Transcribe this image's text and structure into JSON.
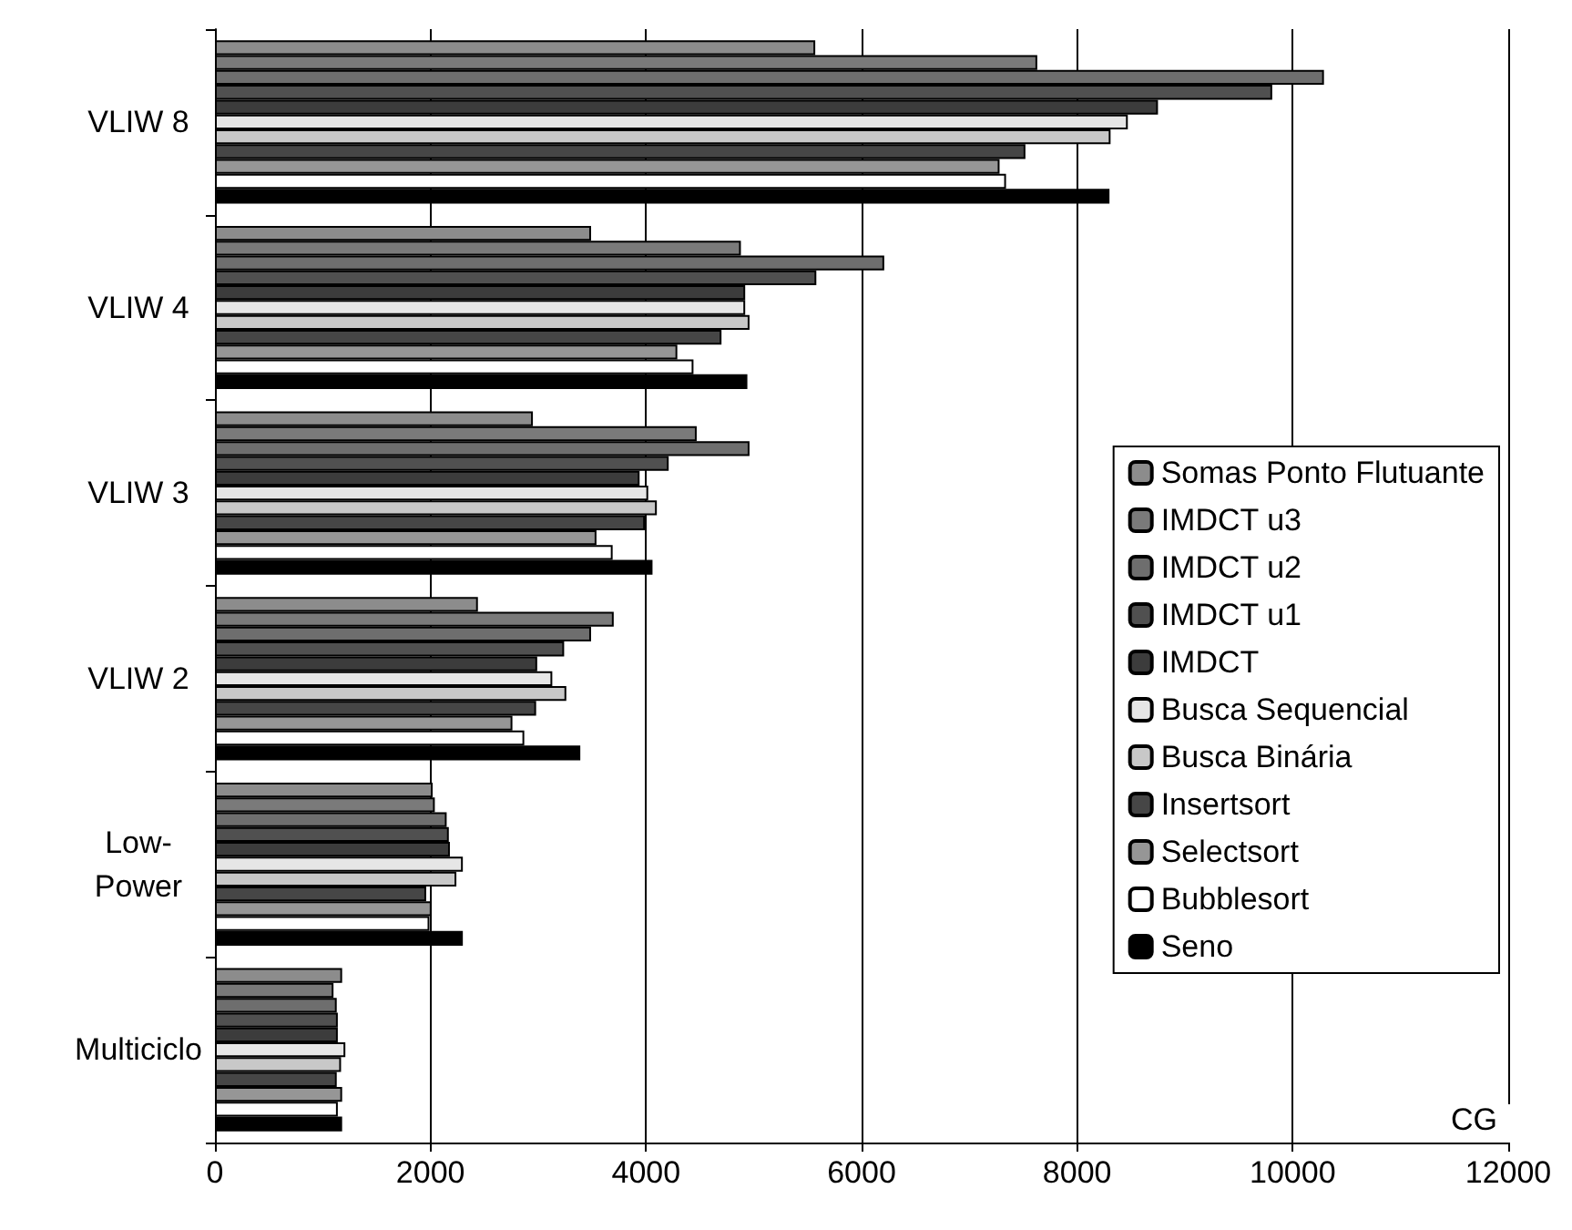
{
  "chart_data": {
    "type": "bar",
    "orientation": "horizontal",
    "categories": [
      "VLIW 8",
      "VLIW 4",
      "VLIW 3",
      "VLIW 2",
      "Low-\nPower",
      "Multiciclo"
    ],
    "xlabel": "CG",
    "xlim": [
      0,
      12000
    ],
    "xticks": [
      0,
      2000,
      4000,
      6000,
      8000,
      10000,
      12000
    ],
    "grid": "x",
    "legend": "right",
    "series": [
      {
        "name": "Somas Ponto Flutuante",
        "color": "#8c8c8c",
        "values": [
          5570,
          3490,
          2950,
          2440,
          2020,
          1180
        ]
      },
      {
        "name": "IMDCT u3",
        "color": "#7a7a7a",
        "values": [
          7630,
          4880,
          4470,
          3700,
          2040,
          1100
        ]
      },
      {
        "name": "IMDCT u2",
        "color": "#6e6e6e",
        "values": [
          10290,
          6210,
          4960,
          3490,
          2150,
          1130
        ]
      },
      {
        "name": "IMDCT u1",
        "color": "#505050",
        "values": [
          9810,
          5580,
          4210,
          3240,
          2170,
          1140
        ]
      },
      {
        "name": "IMDCT",
        "color": "#3c3c3c",
        "values": [
          8750,
          4920,
          3940,
          2990,
          2180,
          1140
        ]
      },
      {
        "name": "Busca Sequencial",
        "color": "#e6e6e6",
        "values": [
          8470,
          4920,
          4020,
          3130,
          2300,
          1210
        ]
      },
      {
        "name": "Busca Binária",
        "color": "#c8c8c8",
        "values": [
          8310,
          4960,
          4100,
          3260,
          2240,
          1170
        ]
      },
      {
        "name": "Insertsort",
        "color": "#464646",
        "values": [
          7520,
          4700,
          3990,
          2980,
          1960,
          1130
        ]
      },
      {
        "name": "Selectsort",
        "color": "#969696",
        "values": [
          7280,
          4290,
          3540,
          2760,
          2010,
          1180
        ]
      },
      {
        "name": "Bubblesort",
        "color": "#ffffff",
        "values": [
          7340,
          4440,
          3690,
          2870,
          1990,
          1140
        ]
      },
      {
        "name": "Seno",
        "color": "#000000",
        "values": [
          8300,
          4940,
          4060,
          3390,
          2300,
          1180
        ]
      }
    ]
  }
}
